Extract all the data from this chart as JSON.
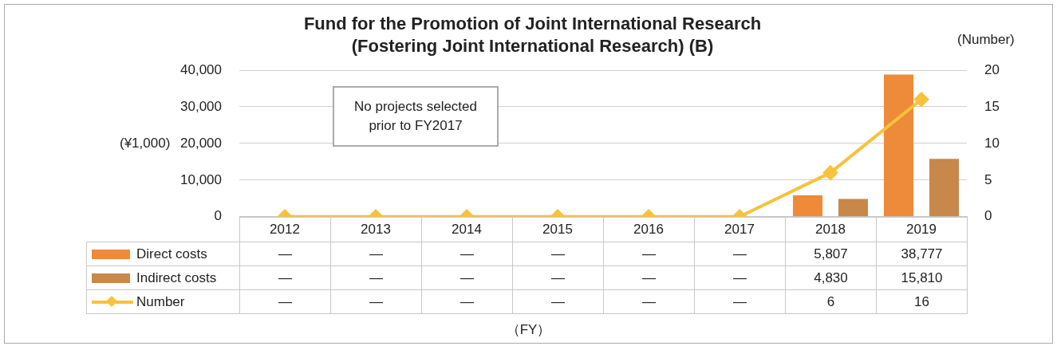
{
  "chart_data": {
    "type": "bar",
    "title": "Fund for the Promotion of Joint International Research\n(Fostering Joint International Research) (B)",
    "ylabel": "(¥1,000)",
    "y2label": "(Number)",
    "categories": [
      "2012",
      "2013",
      "2014",
      "2015",
      "2016",
      "2017",
      "2018",
      "2019"
    ],
    "series": [
      {
        "name": "Direct costs",
        "color": "#ed8b3b",
        "values": [
          null,
          null,
          null,
          null,
          null,
          null,
          5807,
          38777
        ],
        "value_labels": [
          "—",
          "—",
          "—",
          "—",
          "—",
          "—",
          "5,807",
          "38,777"
        ]
      },
      {
        "name": "Indirect costs",
        "color": "#c8884a",
        "values": [
          null,
          null,
          null,
          null,
          null,
          null,
          4830,
          15810
        ],
        "value_labels": [
          "—",
          "—",
          "—",
          "—",
          "—",
          "—",
          "4,830",
          "15,810"
        ]
      },
      {
        "name": "Number",
        "type": "line",
        "axis": "y2",
        "marker": "diamond",
        "color": "#f7c23c",
        "values": [
          0,
          0,
          0,
          0,
          0,
          0,
          6,
          16
        ],
        "value_labels": [
          "—",
          "—",
          "—",
          "—",
          "—",
          "—",
          "6",
          "16"
        ]
      }
    ],
    "ylim": [
      0,
      40000
    ],
    "yticks": [
      0,
      {
        "value": 10000,
        "label": "10,000"
      },
      {
        "value": 20000,
        "label": "20,000"
      },
      {
        "value": 30000,
        "label": "30,000"
      },
      {
        "value": 40000,
        "label": "40,000"
      }
    ],
    "y2lim": [
      0,
      20
    ],
    "y2ticks": [
      0,
      5,
      10,
      15,
      20
    ],
    "grid": "y",
    "legend": "bottom",
    "annotations": [
      "No projects selected prior to FY2017",
      "（FY）"
    ]
  }
}
